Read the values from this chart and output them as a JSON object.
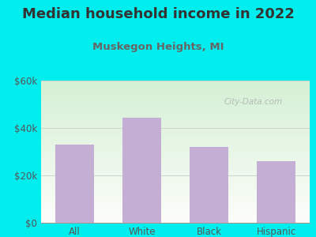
{
  "title": "Median household income in 2022",
  "subtitle": "Muskegon Heights, MI",
  "categories": [
    "All",
    "White",
    "Black",
    "Hispanic"
  ],
  "values": [
    33000,
    44500,
    32000,
    26000
  ],
  "bar_color": "#c4aed4",
  "background_color": "#00EEEE",
  "title_color": "#333333",
  "subtitle_color": "#666666",
  "tick_color": "#555555",
  "grid_color": "#cccccc",
  "ylim": [
    0,
    60000
  ],
  "yticks": [
    0,
    20000,
    40000,
    60000
  ],
  "ytick_labels": [
    "$0",
    "$20k",
    "$40k",
    "$60k"
  ],
  "watermark": "City-Data.com",
  "title_fontsize": 13,
  "subtitle_fontsize": 9.5,
  "tick_fontsize": 8.5
}
